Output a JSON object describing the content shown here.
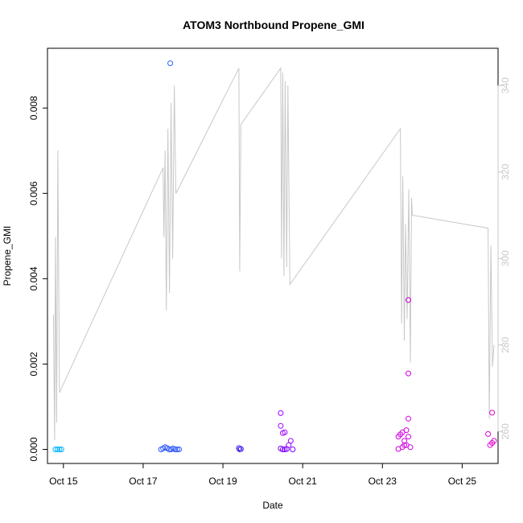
{
  "chart_data": {
    "type": "scatter",
    "title": "ATOM3 Northbound Propene_GMI",
    "xlabel": "Date",
    "ylabel": "Propene_GMI",
    "x_ticks": [
      "Oct 15",
      "Oct 17",
      "Oct 19",
      "Oct 21",
      "Oct 23",
      "Oct 25"
    ],
    "y_ticks": [
      "0.000",
      "0.002",
      "0.004",
      "0.006",
      "0.008"
    ],
    "y2_ticks": [
      "260",
      "280",
      "300",
      "320",
      "340"
    ],
    "xlim": [
      14.6,
      25.9
    ],
    "ylim": [
      -0.00033,
      0.0094
    ],
    "y2lim": [
      252.6,
      348.6
    ],
    "grid": false,
    "series": [
      {
        "type": "points",
        "color_note": "points colored by date, cyan to blue to magenta",
        "points": [
          {
            "x": 14.8,
            "y": 0.0,
            "color": "#00b4ff"
          },
          {
            "x": 14.85,
            "y": 0.0,
            "color": "#00b4ff"
          },
          {
            "x": 14.9,
            "y": 0.0,
            "color": "#00b4ff"
          },
          {
            "x": 14.95,
            "y": 0.0,
            "color": "#00b4ff"
          },
          {
            "x": 17.45,
            "y": 0.0,
            "color": "#2a55ff"
          },
          {
            "x": 17.5,
            "y": 2e-05,
            "color": "#2a55ff"
          },
          {
            "x": 17.55,
            "y": 5e-05,
            "color": "#2a55ff"
          },
          {
            "x": 17.6,
            "y": 3e-05,
            "color": "#2a55ff"
          },
          {
            "x": 17.65,
            "y": 0.0,
            "color": "#2a55ff"
          },
          {
            "x": 17.7,
            "y": 0.0,
            "color": "#2a55ff"
          },
          {
            "x": 17.75,
            "y": 2e-05,
            "color": "#2a55ff"
          },
          {
            "x": 17.8,
            "y": 0.0,
            "color": "#2a55ff"
          },
          {
            "x": 17.85,
            "y": 0.0,
            "color": "#2a55ff"
          },
          {
            "x": 17.9,
            "y": 0.0,
            "color": "#2a55ff"
          },
          {
            "x": 17.68,
            "y": 0.00905,
            "color": "#2a66ff"
          },
          {
            "x": 19.4,
            "y": 3e-05,
            "color": "#4422ee"
          },
          {
            "x": 19.42,
            "y": 0.0,
            "color": "#4422ee"
          },
          {
            "x": 19.45,
            "y": 1e-05,
            "color": "#4422ee"
          },
          {
            "x": 20.45,
            "y": 0.00085,
            "color": "#a000ff"
          },
          {
            "x": 20.45,
            "y": 0.00055,
            "color": "#a000ff"
          },
          {
            "x": 20.5,
            "y": 0.00038,
            "color": "#a000ff"
          },
          {
            "x": 20.55,
            "y": 0.0004,
            "color": "#a000ff"
          },
          {
            "x": 20.45,
            "y": 2e-05,
            "color": "#7a00ff"
          },
          {
            "x": 20.5,
            "y": 0.0,
            "color": "#7a00ff"
          },
          {
            "x": 20.55,
            "y": 0.0,
            "color": "#7a00ff"
          },
          {
            "x": 20.6,
            "y": 1e-05,
            "color": "#7a00ff"
          },
          {
            "x": 20.65,
            "y": 0.0001,
            "color": "#9a00ff"
          },
          {
            "x": 20.7,
            "y": 0.0002,
            "color": "#9a00ff"
          },
          {
            "x": 20.75,
            "y": 0.0,
            "color": "#7a00ff"
          },
          {
            "x": 23.4,
            "y": 0.0003,
            "color": "#d000e0"
          },
          {
            "x": 23.45,
            "y": 0.00035,
            "color": "#d000e0"
          },
          {
            "x": 23.5,
            "y": 0.0004,
            "color": "#d000e0"
          },
          {
            "x": 23.55,
            "y": 0.0002,
            "color": "#d000e0"
          },
          {
            "x": 23.6,
            "y": 0.00045,
            "color": "#d000e0"
          },
          {
            "x": 23.65,
            "y": 0.0003,
            "color": "#d000e0"
          },
          {
            "x": 23.4,
            "y": 1e-05,
            "color": "#d000e0"
          },
          {
            "x": 23.5,
            "y": 5e-05,
            "color": "#d000e0"
          },
          {
            "x": 23.55,
            "y": 0.0001,
            "color": "#d000e0"
          },
          {
            "x": 23.6,
            "y": 0.0001,
            "color": "#d000e0"
          },
          {
            "x": 23.7,
            "y": 5e-05,
            "color": "#d000e0"
          },
          {
            "x": 23.65,
            "y": 0.0035,
            "color": "#d000e0"
          },
          {
            "x": 23.65,
            "y": 0.00178,
            "color": "#d000e0"
          },
          {
            "x": 23.65,
            "y": 0.00072,
            "color": "#d000e0"
          },
          {
            "x": 25.65,
            "y": 0.00036,
            "color": "#e000d0"
          },
          {
            "x": 25.7,
            "y": 0.0001,
            "color": "#e000d0"
          },
          {
            "x": 25.75,
            "y": 0.00015,
            "color": "#e000d0"
          },
          {
            "x": 25.8,
            "y": 0.0002,
            "color": "#e000d0"
          },
          {
            "x": 25.75,
            "y": 0.00086,
            "color": "#e000d0"
          }
        ]
      },
      {
        "type": "line",
        "axis": "right",
        "color": "#c8c8c8",
        "points": [
          {
            "x": 14.75,
            "y": 287
          },
          {
            "x": 14.78,
            "y": 258
          },
          {
            "x": 14.8,
            "y": 305
          },
          {
            "x": 14.83,
            "y": 262
          },
          {
            "x": 14.86,
            "y": 325
          },
          {
            "x": 14.9,
            "y": 269
          },
          {
            "x": 17.5,
            "y": 321
          },
          {
            "x": 17.52,
            "y": 305
          },
          {
            "x": 17.55,
            "y": 325
          },
          {
            "x": 17.58,
            "y": 288
          },
          {
            "x": 17.62,
            "y": 330
          },
          {
            "x": 17.66,
            "y": 292
          },
          {
            "x": 17.7,
            "y": 336
          },
          {
            "x": 17.74,
            "y": 300
          },
          {
            "x": 17.78,
            "y": 340
          },
          {
            "x": 17.82,
            "y": 315
          },
          {
            "x": 19.4,
            "y": 344
          },
          {
            "x": 19.42,
            "y": 297
          },
          {
            "x": 19.45,
            "y": 331
          },
          {
            "x": 20.45,
            "y": 344
          },
          {
            "x": 20.47,
            "y": 300
          },
          {
            "x": 20.5,
            "y": 343
          },
          {
            "x": 20.53,
            "y": 296
          },
          {
            "x": 20.56,
            "y": 341
          },
          {
            "x": 20.6,
            "y": 298
          },
          {
            "x": 20.63,
            "y": 340
          },
          {
            "x": 20.68,
            "y": 294
          },
          {
            "x": 23.45,
            "y": 330
          },
          {
            "x": 23.48,
            "y": 285
          },
          {
            "x": 23.51,
            "y": 319
          },
          {
            "x": 23.55,
            "y": 281
          },
          {
            "x": 23.58,
            "y": 308
          },
          {
            "x": 23.62,
            "y": 286
          },
          {
            "x": 23.66,
            "y": 316
          },
          {
            "x": 23.7,
            "y": 276
          },
          {
            "x": 23.73,
            "y": 314
          },
          {
            "x": 23.75,
            "y": 310
          },
          {
            "x": 25.65,
            "y": 307
          },
          {
            "x": 25.68,
            "y": 263
          },
          {
            "x": 25.72,
            "y": 303
          },
          {
            "x": 25.76,
            "y": 275
          },
          {
            "x": 25.8,
            "y": 280
          }
        ]
      }
    ]
  }
}
